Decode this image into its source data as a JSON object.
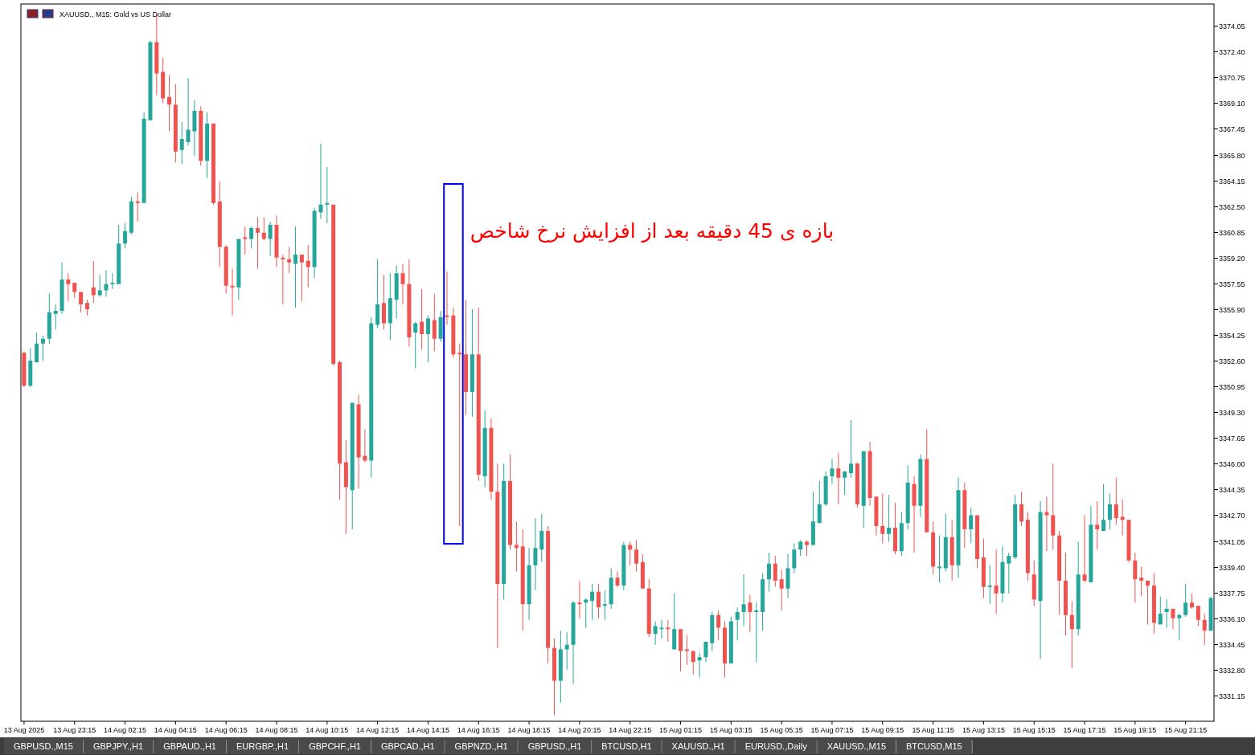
{
  "chart_data": {
    "type": "candlestick",
    "title": "XAUUSD., M15: Gold vs US Dollar",
    "categories": [
      "13 Aug 2025",
      null,
      null,
      null,
      null,
      null,
      null,
      null,
      "13 Aug 23:15",
      null,
      null,
      null,
      null,
      null,
      null,
      null,
      "14 Aug 02:15",
      null,
      null,
      null,
      null,
      null,
      null,
      null,
      "14 Aug 04:15",
      null,
      null,
      null,
      null,
      null,
      null,
      null,
      "14 Aug 06:15",
      null,
      null,
      null,
      null,
      null,
      null,
      null,
      "14 Aug 08:15",
      null,
      null,
      null,
      null,
      null,
      null,
      null,
      "14 Aug 10:15",
      null,
      null,
      null,
      null,
      null,
      null,
      null,
      "14 Aug 12:15",
      null,
      null,
      null,
      null,
      null,
      null,
      null,
      "14 Aug 14:15",
      null,
      null,
      null,
      null,
      null,
      null,
      null,
      "14 Aug 16:15",
      null,
      null,
      null,
      null,
      null,
      null,
      null,
      "14 Aug 18:15",
      null,
      null,
      null,
      null,
      null,
      null,
      null,
      "14 Aug 20:15",
      null,
      null,
      null,
      null,
      null,
      null,
      null,
      "14 Aug 22:15",
      null,
      null,
      null,
      null,
      null,
      null,
      null,
      "15 Aug 01:15",
      null,
      null,
      null,
      null,
      null,
      null,
      null,
      "15 Aug 03:15",
      null,
      null,
      null,
      null,
      null,
      null,
      null,
      "15 Aug 05:15",
      null,
      null,
      null,
      null,
      null,
      null,
      null,
      "15 Aug 07:15",
      null,
      null,
      null,
      null,
      null,
      null,
      null,
      "15 Aug 09:15",
      null,
      null,
      null,
      null,
      null,
      null,
      null,
      "15 Aug 11:15",
      null,
      null,
      null,
      null,
      null,
      null,
      null,
      "15 Aug 13:15",
      null,
      null,
      null,
      null,
      null,
      null,
      null,
      "15 Aug 15:15",
      null,
      null,
      null,
      null,
      null,
      null,
      null,
      "15 Aug 17:15",
      null,
      null,
      null,
      null,
      null,
      null,
      null,
      "15 Aug 19:15",
      null,
      null,
      null,
      null,
      null,
      null,
      null,
      "15 Aug 21:15",
      null,
      null,
      null,
      null
    ],
    "ohlc": [
      [
        3353.1,
        3353.2,
        3350.9,
        3351.0
      ],
      [
        3351.0,
        3353.4,
        3350.9,
        3352.6
      ],
      [
        3352.5,
        3354.4,
        3352.5,
        3353.7
      ],
      [
        3353.7,
        3354.2,
        3352.6,
        3354.0
      ],
      [
        3354.0,
        3356.9,
        3353.7,
        3355.7
      ],
      [
        3355.6,
        3356.2,
        3354.6,
        3355.8
      ],
      [
        3355.8,
        3358.9,
        3355.6,
        3357.8
      ],
      [
        3357.8,
        3358.2,
        3356.4,
        3357.5
      ],
      [
        3357.6,
        3357.6,
        3356.6,
        3357.0
      ],
      [
        3357.0,
        3357.0,
        3355.7,
        3356.2
      ],
      [
        3356.3,
        3356.5,
        3355.5,
        3355.9
      ],
      [
        3357.3,
        3359.0,
        3356.3,
        3356.8
      ],
      [
        3356.8,
        3358.1,
        3356.7,
        3357.1
      ],
      [
        3357.1,
        3358.4,
        3356.7,
        3357.5
      ],
      [
        3357.5,
        3358.2,
        3357.2,
        3357.6
      ],
      [
        3357.5,
        3361.3,
        3357.5,
        3360.1
      ],
      [
        3360.1,
        3361.4,
        3359.8,
        3360.9
      ],
      [
        3360.8,
        3363.1,
        3360.7,
        3362.8
      ],
      [
        3362.8,
        3363.4,
        3361.5,
        3362.7
      ],
      [
        3362.7,
        3368.5,
        3362.7,
        3368.1
      ],
      [
        3368.0,
        3373.1,
        3368.0,
        3373.0
      ],
      [
        3373.0,
        3374.8,
        3369.6,
        3371.0
      ],
      [
        3371.1,
        3372.0,
        3369.1,
        3369.4
      ],
      [
        3369.5,
        3370.9,
        3367.3,
        3369.0
      ],
      [
        3369.0,
        3370.3,
        3365.3,
        3366.0
      ],
      [
        3366.1,
        3367.9,
        3365.2,
        3366.8
      ],
      [
        3366.6,
        3370.7,
        3366.4,
        3367.4
      ],
      [
        3367.3,
        3369.3,
        3365.7,
        3368.6
      ],
      [
        3368.6,
        3368.9,
        3365.1,
        3365.4
      ],
      [
        3365.4,
        3368.5,
        3364.3,
        3367.8
      ],
      [
        3367.8,
        3367.8,
        3362.6,
        3362.7
      ],
      [
        3362.8,
        3364.1,
        3358.6,
        3359.9
      ],
      [
        3359.9,
        3360.0,
        3356.9,
        3357.4
      ],
      [
        3357.4,
        3358.5,
        3355.5,
        3357.3
      ],
      [
        3357.3,
        3360.4,
        3356.5,
        3360.4
      ],
      [
        3360.5,
        3361.2,
        3359.4,
        3360.4
      ],
      [
        3360.4,
        3361.2,
        3359.8,
        3361.1
      ],
      [
        3361.1,
        3361.8,
        3358.5,
        3360.8
      ],
      [
        3360.8,
        3361.8,
        3360.3,
        3360.4
      ],
      [
        3360.4,
        3361.5,
        3359.3,
        3361.3
      ],
      [
        3361.3,
        3361.9,
        3358.6,
        3359.2
      ],
      [
        3359.2,
        3359.4,
        3356.2,
        3359.1
      ],
      [
        3359.1,
        3359.9,
        3358.2,
        3358.9
      ],
      [
        3358.8,
        3361.2,
        3356.0,
        3359.4
      ],
      [
        3359.4,
        3359.4,
        3356.4,
        3358.9
      ],
      [
        3359.0,
        3360.0,
        3357.3,
        3358.6
      ],
      [
        3358.6,
        3362.4,
        3357.9,
        3362.2
      ],
      [
        3362.1,
        3366.5,
        3361.7,
        3362.6
      ],
      [
        3362.6,
        3365.0,
        3361.4,
        3362.7
      ],
      [
        3362.6,
        3362.6,
        3352.3,
        3352.4
      ],
      [
        3352.5,
        3352.6,
        3343.7,
        3346.0
      ],
      [
        3346.1,
        3347.5,
        3341.5,
        3344.5
      ],
      [
        3344.3,
        3349.9,
        3341.8,
        3349.9
      ],
      [
        3349.8,
        3350.4,
        3344.4,
        3346.4
      ],
      [
        3346.5,
        3348.2,
        3346.1,
        3346.2
      ],
      [
        3346.2,
        3355.4,
        3345.1,
        3355.0
      ],
      [
        3354.9,
        3359.1,
        3354.7,
        3356.2
      ],
      [
        3356.3,
        3358.1,
        3354.6,
        3355.0
      ],
      [
        3355.0,
        3358.2,
        3353.9,
        3356.6
      ],
      [
        3356.5,
        3358.7,
        3355.3,
        3358.2
      ],
      [
        3358.2,
        3358.8,
        3356.2,
        3357.5
      ],
      [
        3357.5,
        3359.1,
        3353.5,
        3354.1
      ],
      [
        3354.4,
        3355.1,
        3352.1,
        3355.0
      ],
      [
        3355.1,
        3357.2,
        3353.3,
        3354.3
      ],
      [
        3354.3,
        3355.5,
        3352.5,
        3355.3
      ],
      [
        3355.2,
        3356.9,
        3353.2,
        3354.0
      ],
      [
        3354.0,
        3355.8,
        3353.8,
        3355.4
      ],
      [
        3355.5,
        3358.3,
        3354.9,
        3355.4
      ],
      [
        3355.5,
        3356.0,
        3352.8,
        3353.0
      ],
      [
        3353.1,
        3353.7,
        3342.0,
        3353.0
      ],
      [
        3353.0,
        3356.5,
        3349.1,
        3350.6
      ],
      [
        3350.6,
        3355.9,
        3349.0,
        3353.0
      ],
      [
        3353.0,
        3356.0,
        3344.9,
        3345.3
      ],
      [
        3345.2,
        3349.4,
        3344.5,
        3348.3
      ],
      [
        3348.3,
        3348.9,
        3343.7,
        3344.2
      ],
      [
        3344.2,
        3346.0,
        3334.2,
        3338.3
      ],
      [
        3338.3,
        3346.0,
        3337.3,
        3344.9
      ],
      [
        3344.9,
        3346.6,
        3340.5,
        3340.8
      ],
      [
        3340.8,
        3342.3,
        3339.1,
        3340.6
      ],
      [
        3340.7,
        3341.8,
        3335.3,
        3337.0
      ],
      [
        3337.0,
        3340.6,
        3336.0,
        3339.5
      ],
      [
        3339.5,
        3342.5,
        3337.9,
        3340.6
      ],
      [
        3340.5,
        3342.8,
        3339.7,
        3341.7
      ],
      [
        3341.7,
        3342.0,
        3333.2,
        3334.2
      ],
      [
        3334.2,
        3334.8,
        3329.9,
        3332.1
      ],
      [
        3332.1,
        3335.3,
        3330.7,
        3334.1
      ],
      [
        3334.1,
        3335.2,
        3332.8,
        3334.4
      ],
      [
        3334.4,
        3337.2,
        3331.9,
        3337.1
      ],
      [
        3337.1,
        3338.5,
        3336.1,
        3337.0
      ],
      [
        3337.1,
        3337.4,
        3335.5,
        3337.3
      ],
      [
        3337.2,
        3338.3,
        3336.0,
        3337.8
      ],
      [
        3337.8,
        3338.3,
        3336.1,
        3336.8
      ],
      [
        3336.9,
        3337.9,
        3336.0,
        3337.0
      ],
      [
        3337.0,
        3339.3,
        3336.7,
        3338.7
      ],
      [
        3338.7,
        3339.1,
        3338.1,
        3338.2
      ],
      [
        3338.2,
        3341.0,
        3337.9,
        3340.8
      ],
      [
        3340.8,
        3341.0,
        3339.5,
        3340.5
      ],
      [
        3340.5,
        3341.1,
        3339.1,
        3339.6
      ],
      [
        3339.7,
        3340.2,
        3338.0,
        3338.0
      ],
      [
        3338.0,
        3338.6,
        3334.9,
        3335.1
      ],
      [
        3335.1,
        3335.9,
        3334.4,
        3335.6
      ],
      [
        3335.4,
        3336.0,
        3334.8,
        3335.5
      ],
      [
        3335.5,
        3336.0,
        3334.6,
        3335.4
      ],
      [
        3334.1,
        3337.7,
        3334.1,
        3335.4
      ],
      [
        3335.4,
        3335.4,
        3332.7,
        3334.0
      ],
      [
        3334.1,
        3335.0,
        3333.1,
        3334.0
      ],
      [
        3334.0,
        3334.0,
        3332.5,
        3333.3
      ],
      [
        3333.4,
        3333.9,
        3332.3,
        3333.6
      ],
      [
        3333.6,
        3334.6,
        3333.3,
        3334.6
      ],
      [
        3334.5,
        3336.5,
        3334.0,
        3336.3
      ],
      [
        3336.3,
        3336.6,
        3334.7,
        3335.5
      ],
      [
        3335.5,
        3335.9,
        3332.3,
        3333.2
      ],
      [
        3333.2,
        3336.2,
        3333.2,
        3335.9
      ],
      [
        3336.0,
        3336.8,
        3334.7,
        3336.5
      ],
      [
        3336.5,
        3338.9,
        3335.6,
        3337.0
      ],
      [
        3337.1,
        3337.6,
        3335.2,
        3336.5
      ],
      [
        3336.5,
        3337.1,
        3333.3,
        3336.6
      ],
      [
        3336.5,
        3339.0,
        3335.3,
        3338.6
      ],
      [
        3338.6,
        3340.3,
        3337.8,
        3339.6
      ],
      [
        3339.6,
        3340.1,
        3338.1,
        3338.5
      ],
      [
        3338.6,
        3339.2,
        3336.6,
        3338.0
      ],
      [
        3338.0,
        3340.2,
        3337.4,
        3339.3
      ],
      [
        3339.3,
        3340.9,
        3339.0,
        3340.5
      ],
      [
        3340.5,
        3341.1,
        3340.1,
        3341.0
      ],
      [
        3341.0,
        3341.1,
        3340.1,
        3340.8
      ],
      [
        3340.8,
        3344.2,
        3340.8,
        3342.3
      ],
      [
        3342.2,
        3344.9,
        3342.2,
        3343.4
      ],
      [
        3343.4,
        3345.5,
        3343.3,
        3345.2
      ],
      [
        3345.2,
        3346.3,
        3344.7,
        3345.7
      ],
      [
        3345.7,
        3346.7,
        3343.4,
        3345.1
      ],
      [
        3345.1,
        3345.5,
        3344.0,
        3345.5
      ],
      [
        3345.4,
        3348.8,
        3345.1,
        3346.0
      ],
      [
        3346.0,
        3346.1,
        3343.2,
        3343.4
      ],
      [
        3343.3,
        3346.8,
        3341.9,
        3346.8
      ],
      [
        3346.8,
        3347.4,
        3343.3,
        3343.8
      ],
      [
        3343.9,
        3343.9,
        3341.4,
        3342.0
      ],
      [
        3342.0,
        3344.1,
        3340.9,
        3341.5
      ],
      [
        3341.5,
        3344.0,
        3341.0,
        3341.9
      ],
      [
        3341.9,
        3343.5,
        3340.2,
        3340.4
      ],
      [
        3340.4,
        3342.9,
        3340.1,
        3342.2
      ],
      [
        3342.2,
        3345.9,
        3341.8,
        3344.8
      ],
      [
        3344.7,
        3345.2,
        3340.3,
        3343.3
      ],
      [
        3343.3,
        3346.6,
        3342.6,
        3346.3
      ],
      [
        3346.3,
        3348.2,
        3341.6,
        3341.6
      ],
      [
        3341.6,
        3342.3,
        3338.9,
        3339.4
      ],
      [
        3339.3,
        3341.4,
        3338.4,
        3339.4
      ],
      [
        3339.3,
        3342.8,
        3339.1,
        3341.3
      ],
      [
        3341.3,
        3342.4,
        3338.5,
        3339.5
      ],
      [
        3339.5,
        3345.1,
        3338.7,
        3344.3
      ],
      [
        3344.3,
        3344.8,
        3340.6,
        3341.8
      ],
      [
        3341.8,
        3343.2,
        3340.9,
        3342.7
      ],
      [
        3342.7,
        3342.7,
        3339.3,
        3339.9
      ],
      [
        3340.0,
        3341.2,
        3337.4,
        3338.1
      ],
      [
        3338.1,
        3339.5,
        3337.0,
        3338.2
      ],
      [
        3338.2,
        3340.5,
        3336.4,
        3337.7
      ],
      [
        3337.7,
        3340.7,
        3337.1,
        3339.7
      ],
      [
        3339.6,
        3340.3,
        3337.7,
        3340.1
      ],
      [
        3340.0,
        3344.0,
        3339.9,
        3343.4
      ],
      [
        3343.4,
        3344.2,
        3342.0,
        3342.3
      ],
      [
        3342.4,
        3342.9,
        3338.5,
        3339.0
      ],
      [
        3338.9,
        3339.8,
        3336.9,
        3337.3
      ],
      [
        3337.2,
        3343.6,
        3333.5,
        3342.9
      ],
      [
        3342.9,
        3343.9,
        3340.4,
        3342.7
      ],
      [
        3342.7,
        3346.0,
        3340.5,
        3341.4
      ],
      [
        3341.4,
        3341.7,
        3336.3,
        3338.5
      ],
      [
        3338.5,
        3340.3,
        3335.0,
        3336.3
      ],
      [
        3336.3,
        3337.2,
        3332.9,
        3335.4
      ],
      [
        3335.4,
        3341.0,
        3335.0,
        3338.9
      ],
      [
        3338.9,
        3342.7,
        3338.4,
        3338.5
      ],
      [
        3338.4,
        3343.3,
        3338.4,
        3342.1
      ],
      [
        3342.1,
        3343.6,
        3340.5,
        3341.8
      ],
      [
        3341.7,
        3344.7,
        3341.7,
        3342.4
      ],
      [
        3342.4,
        3344.1,
        3341.8,
        3343.4
      ],
      [
        3343.4,
        3345.1,
        3342.1,
        3342.5
      ],
      [
        3342.6,
        3343.7,
        3341.4,
        3342.4
      ],
      [
        3342.4,
        3342.4,
        3339.7,
        3339.8
      ],
      [
        3339.8,
        3340.3,
        3337.1,
        3338.6
      ],
      [
        3338.7,
        3339.4,
        3337.5,
        3338.5
      ],
      [
        3338.5,
        3338.5,
        3335.7,
        3338.2
      ],
      [
        3338.2,
        3339.0,
        3335.1,
        3335.8
      ],
      [
        3335.7,
        3337.5,
        3335.7,
        3336.4
      ],
      [
        3336.5,
        3337.3,
        3335.5,
        3336.7
      ],
      [
        3336.7,
        3336.7,
        3335.4,
        3336.1
      ],
      [
        3336.1,
        3336.4,
        3334.7,
        3336.3
      ],
      [
        3336.3,
        3338.3,
        3336.2,
        3337.1
      ],
      [
        3337.1,
        3337.7,
        3336.7,
        3336.8
      ],
      [
        3336.9,
        3336.9,
        3335.6,
        3336.0
      ],
      [
        3336.0,
        3336.4,
        3334.4,
        3335.3
      ],
      [
        3335.3,
        3337.5,
        3335.3,
        3337.4
      ]
    ],
    "colors": [
      "#ef5350",
      "#26a69a",
      "#26a69a",
      "#26a69a",
      "#26a69a",
      "#26a69a",
      "#26a69a",
      "#ef5350",
      "#ef5350",
      "#ef5350",
      "#ef5350",
      "#ef5350",
      "#26a69a",
      "#26a69a",
      "#26a69a",
      "#26a69a",
      "#26a69a",
      "#26a69a",
      "#ef5350",
      "#26a69a",
      "#26a69a",
      "#ef5350",
      "#ef5350",
      "#ef5350",
      "#ef5350",
      "#26a69a",
      "#26a69a",
      "#26a69a",
      "#ef5350",
      "#26a69a",
      "#ef5350",
      "#ef5350",
      "#ef5350",
      "#ef5350",
      "#26a69a",
      "#ef5350",
      "#26a69a",
      "#ef5350",
      "#ef5350",
      "#26a69a",
      "#ef5350",
      "#ef5350",
      "#ef5350",
      "#26a69a",
      "#ef5350",
      "#ef5350",
      "#26a69a",
      "#26a69a",
      "#26a69a",
      "#ef5350",
      "#ef5350",
      "#ef5350",
      "#26a69a",
      "#ef5350",
      "#ef5350",
      "#26a69a",
      "#26a69a",
      "#ef5350",
      "#26a69a",
      "#26a69a",
      "#ef5350",
      "#ef5350",
      "#26a69a",
      "#ef5350",
      "#26a69a",
      "#ef5350",
      "#26a69a",
      "#ef5350",
      "#ef5350",
      "#ef5350",
      "#ef5350",
      "#26a69a",
      "#ef5350",
      "#26a69a",
      "#ef5350",
      "#ef5350",
      "#26a69a",
      "#ef5350",
      "#ef5350",
      "#ef5350",
      "#26a69a",
      "#26a69a",
      "#26a69a",
      "#ef5350",
      "#ef5350",
      "#26a69a",
      "#26a69a",
      "#26a69a",
      "#ef5350",
      "#26a69a",
      "#26a69a",
      "#ef5350",
      "#26a69a",
      "#26a69a",
      "#ef5350",
      "#26a69a",
      "#ef5350",
      "#ef5350",
      "#ef5350",
      "#ef5350",
      "#26a69a",
      "#26a69a",
      "#ef5350",
      "#26a69a",
      "#ef5350",
      "#ef5350",
      "#ef5350",
      "#26a69a",
      "#26a69a",
      "#26a69a",
      "#ef5350",
      "#ef5350",
      "#26a69a",
      "#26a69a",
      "#26a69a",
      "#ef5350",
      "#26a69a",
      "#26a69a",
      "#26a69a",
      "#ef5350",
      "#ef5350",
      "#26a69a",
      "#26a69a",
      "#26a69a",
      "#ef5350",
      "#26a69a",
      "#26a69a",
      "#26a69a",
      "#26a69a",
      "#ef5350",
      "#26a69a",
      "#26a69a",
      "#ef5350",
      "#26a69a",
      "#ef5350",
      "#ef5350",
      "#ef5350",
      "#26a69a",
      "#ef5350",
      "#26a69a",
      "#26a69a",
      "#ef5350",
      "#26a69a",
      "#ef5350",
      "#ef5350",
      "#26a69a",
      "#26a69a",
      "#ef5350",
      "#26a69a",
      "#ef5350",
      "#26a69a",
      "#ef5350",
      "#ef5350",
      "#26a69a",
      "#ef5350",
      "#26a69a",
      "#26a69a",
      "#26a69a",
      "#ef5350",
      "#ef5350",
      "#ef5350",
      "#26a69a",
      "#ef5350",
      "#ef5350",
      "#ef5350",
      "#ef5350",
      "#ef5350",
      "#26a69a",
      "#ef5350",
      "#26a69a",
      "#ef5350",
      "#26a69a",
      "#26a69a",
      "#ef5350",
      "#ef5350",
      "#ef5350",
      "#ef5350",
      "#ef5350",
      "#ef5350",
      "#ef5350",
      "#26a69a",
      "#26a69a",
      "#ef5350",
      "#26a69a",
      "#26a69a",
      "#ef5350",
      "#ef5350",
      "#ef5350",
      "#26a69a"
    ],
    "ylim": [
      3329.5,
      3375.45
    ],
    "yticks": [
      3374.05,
      {
        "value": 3372.4,
        "label": "3372.40"
      },
      3370.75,
      {
        "value": 3369.1,
        "label": "3369.10"
      },
      3367.45,
      {
        "value": 3365.8,
        "label": "3365.80"
      },
      3364.15,
      {
        "value": 3362.5,
        "label": "3362.50"
      },
      3360.85,
      {
        "value": 3359.2,
        "label": "3359.20"
      },
      3357.55,
      {
        "value": 3355.9,
        "label": "3355.90"
      },
      3354.25,
      {
        "value": 3352.6,
        "label": "3352.60"
      },
      3350.95,
      {
        "value": 3349.3,
        "label": "3349.30"
      },
      3347.65,
      {
        "value": 3346,
        "label": "3346.00"
      },
      3344.35,
      {
        "value": 3342.7,
        "label": "3342.70"
      },
      3341.05,
      {
        "value": 3339.4,
        "label": "3339.40"
      },
      3337.75,
      {
        "value": 3336.1,
        "label": "3336.10"
      },
      3334.45,
      {
        "value": 3332.8,
        "label": "3332.80"
      },
      3331.15
    ],
    "annotations": [
      "بازه ی 45 دقیقه بعد از افزایش نرخ شاخص",
      "GBPUSD.,M15",
      "GBPJPY.,H1",
      "GBPAUD.,H1",
      "EURGBP.,H1",
      "GBPCHF.,H1",
      "GBPCAD.,H1",
      "GBPNZD.,H1",
      "GBPUSD.,H1",
      "BTCUSD,H1",
      "XAUUSD.,H1",
      "EURUSD.,Daily",
      "XAUUSD.,M15",
      "BTCUSD,M15"
    ]
  }
}
